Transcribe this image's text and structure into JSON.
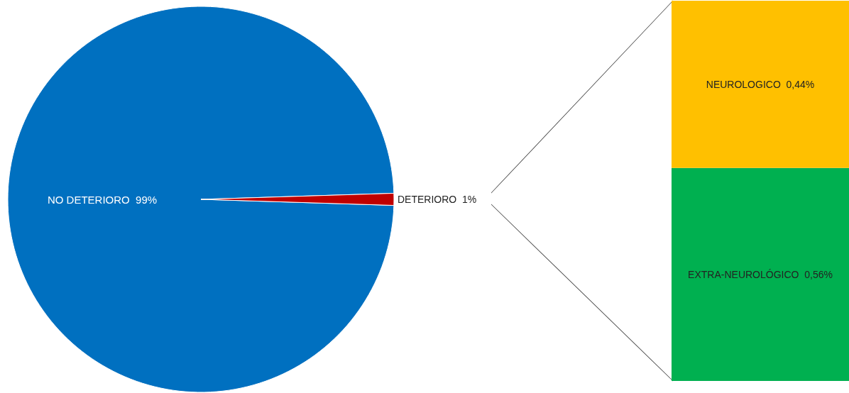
{
  "chart_data": [
    {
      "type": "pie",
      "categories": [
        "NO DETERIORO",
        "DETERIORO"
      ],
      "values": [
        99,
        1
      ],
      "colors": [
        "#0070c0",
        "#c00000"
      ],
      "value_labels": [
        "99%",
        "1%"
      ]
    },
    {
      "type": "bar",
      "stacked": true,
      "categories": [
        null
      ],
      "series": [
        {
          "name": "EXTRA-NEUROLÓGICO",
          "color": "#00b050",
          "values": [
            0.56
          ],
          "value_labels": [
            "0,56%"
          ]
        },
        {
          "name": "NEUROLOGICO",
          "color": "#ffc000",
          "values": [
            0.44
          ],
          "value_labels": [
            "0,44%"
          ]
        }
      ]
    }
  ]
}
